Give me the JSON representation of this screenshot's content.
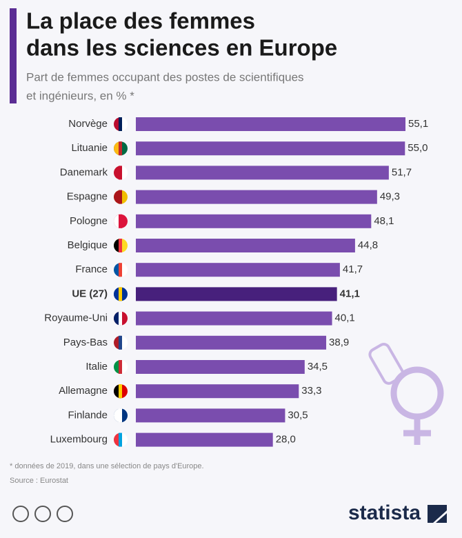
{
  "chart_data": {
    "type": "bar",
    "title": [
      "La place des femmes",
      "dans les sciences en Europe"
    ],
    "subtitle": [
      "Part de femmes occupant des postes de scientifiques",
      "et ingénieurs, en % *"
    ],
    "categories": [
      "Norvège",
      "Lituanie",
      "Danemark",
      "Espagne",
      "Pologne",
      "Belgique",
      "France",
      "UE (27)",
      "Royaume-Uni",
      "Pays-Bas",
      "Italie",
      "Allemagne",
      "Finlande",
      "Luxembourg"
    ],
    "values": [
      55.1,
      55.0,
      51.7,
      49.3,
      48.1,
      44.8,
      41.7,
      41.1,
      40.1,
      38.9,
      34.5,
      33.3,
      30.5,
      28.0
    ],
    "value_labels": [
      "55,1",
      "55,0",
      "51,7",
      "49,3",
      "48,1",
      "44,8",
      "41,7",
      "41,1",
      "40,1",
      "38,9",
      "34,5",
      "33,3",
      "30,5",
      "28,0"
    ],
    "colors": [
      "#7a4dae",
      "#7a4dae",
      "#7a4dae",
      "#7a4dae",
      "#7a4dae",
      "#7a4dae",
      "#7a4dae",
      "#47207c",
      "#7a4dae",
      "#7a4dae",
      "#7a4dae",
      "#7a4dae",
      "#7a4dae",
      "#7a4dae"
    ],
    "footnote": "* données de 2019, dans une sélection de pays d'Europe.",
    "source": "Source : Eurostat",
    "brand": "statista"
  }
}
